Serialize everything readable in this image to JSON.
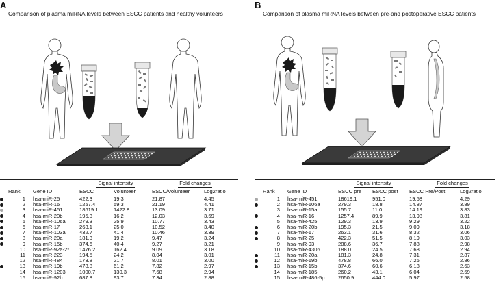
{
  "panel_a": {
    "letter": "A",
    "title": "Comparison of plasma miRNA levels between ESCC patients and healthy volunteers",
    "headers": {
      "rank": "Rank",
      "gene": "Gene ID",
      "group1": "Signal intensity",
      "group2": "Fold changes",
      "c1": "ESCC",
      "c2": "Volunteer",
      "c3": "ESCC/Volunteer",
      "c4": "Log2ratio"
    },
    "rows": [
      {
        "dot": "black",
        "rank": "1",
        "gene": "hsa-miR-25",
        "v1": "422.3",
        "v2": "19.3",
        "v3": "21.87",
        "v4": "4.45"
      },
      {
        "dot": "black",
        "rank": "2",
        "gene": "hsa-miR-16",
        "v1": "1257.4",
        "v2": "59.3",
        "v3": "21.19",
        "v4": "4.41"
      },
      {
        "dot": "grey",
        "rank": "3",
        "gene": "hsa-miR-451",
        "v1": "18619.1",
        "v2": "1422.8",
        "v3": "13.09",
        "v4": "3.71"
      },
      {
        "dot": "black",
        "rank": "4",
        "gene": "hsa-miR-20b",
        "v1": "195.3",
        "v2": "16.2",
        "v3": "12.03",
        "v4": "3.59"
      },
      {
        "dot": "black",
        "rank": "5",
        "gene": "hsa-miR-106a",
        "v1": "279.3",
        "v2": "25.9",
        "v3": "10.77",
        "v4": "3.43"
      },
      {
        "dot": "black",
        "rank": "6",
        "gene": "hsa-miR-17",
        "v1": "263.1",
        "v2": "25.0",
        "v3": "10.52",
        "v4": "3.40"
      },
      {
        "dot": "black",
        "rank": "7",
        "gene": "hsa-miR-103a",
        "v1": "432.7",
        "v2": "41.4",
        "v3": "10.46",
        "v4": "3.39"
      },
      {
        "dot": "black",
        "rank": "8",
        "gene": "hsa-miR-20a",
        "v1": "181.3",
        "v2": "19.2",
        "v3": "9.47",
        "v4": "3.24"
      },
      {
        "dot": "black",
        "rank": "9",
        "gene": "hsa-miR-15b",
        "v1": "374.6",
        "v2": "40.4",
        "v3": "9.27",
        "v4": "3.21"
      },
      {
        "dot": "none",
        "rank": "10",
        "gene": "hsa-miR-92a-2*",
        "v1": "1476.2",
        "v2": "162.4",
        "v3": "9.09",
        "v4": "3.18"
      },
      {
        "dot": "none",
        "rank": "11",
        "gene": "hsa-miR-223",
        "v1": "194.5",
        "v2": "24.2",
        "v3": "8.04",
        "v4": "3.01"
      },
      {
        "dot": "none",
        "rank": "12",
        "gene": "hsa-miR-484",
        "v1": "173.8",
        "v2": "21.7",
        "v3": "8.01",
        "v4": "3.00"
      },
      {
        "dot": "black",
        "rank": "13",
        "gene": "hsa-miR-19b",
        "v1": "478.8",
        "v2": "61.2",
        "v3": "7.82",
        "v4": "2.97"
      },
      {
        "dot": "none",
        "rank": "14",
        "gene": "hsa-miR-1203",
        "v1": "1000.7",
        "v2": "130.3",
        "v3": "7.68",
        "v4": "2.94"
      },
      {
        "dot": "none",
        "rank": "15",
        "gene": "hsa-miR-92b",
        "v1": "687.8",
        "v2": "93.7",
        "v3": "7.34",
        "v4": "2.88"
      }
    ]
  },
  "panel_b": {
    "letter": "B",
    "title": "Comparison of plasma miRNA levels between pre-and postoperative ESCC patients",
    "headers": {
      "rank": "Rank",
      "gene": "Gene ID",
      "group1": "Signal intensity",
      "group2": "Fold changes",
      "c1": "ESCC pre",
      "c2": "ESCC post",
      "c3": "ESCC Pre/Post",
      "c4": "Log2ratio"
    },
    "rows": [
      {
        "dot": "grey",
        "rank": "1",
        "gene": "hsa-miR-451",
        "v1": "18619.1",
        "v2": "951.0",
        "v3": "19.58",
        "v4": "4.29"
      },
      {
        "dot": "black",
        "rank": "2",
        "gene": "hsa-miR-106a",
        "v1": "279.3",
        "v2": "18.8",
        "v3": "14.87",
        "v4": "3.89"
      },
      {
        "dot": "none",
        "rank": "3",
        "gene": "hsa-miR-15a",
        "v1": "155.7",
        "v2": "11.0",
        "v3": "14.19",
        "v4": "3.83"
      },
      {
        "dot": "black",
        "rank": "4",
        "gene": "hsa-miR-16",
        "v1": "1257.4",
        "v2": "89.9",
        "v3": "13.98",
        "v4": "3.81"
      },
      {
        "dot": "none",
        "rank": "5",
        "gene": "hsa-miR-425",
        "v1": "129.3",
        "v2": "13.9",
        "v3": "9.29",
        "v4": "3.22"
      },
      {
        "dot": "black",
        "rank": "6",
        "gene": "hsa-miR-20b",
        "v1": "195.3",
        "v2": "21.5",
        "v3": "9.09",
        "v4": "3.18"
      },
      {
        "dot": "black",
        "rank": "7",
        "gene": "hsa-miR-17",
        "v1": "263.1",
        "v2": "31.6",
        "v3": "8.32",
        "v4": "3.06"
      },
      {
        "dot": "black",
        "rank": "8",
        "gene": "hsa-miR-25",
        "v1": "422.3",
        "v2": "51.5",
        "v3": "8.19",
        "v4": "3.03"
      },
      {
        "dot": "none",
        "rank": "9",
        "gene": "hsa-miR-93",
        "v1": "288.6",
        "v2": "36.7",
        "v3": "7.88",
        "v4": "2.98"
      },
      {
        "dot": "none",
        "rank": "10",
        "gene": "hsa-miR-4306",
        "v1": "188.0",
        "v2": "24.5",
        "v3": "7.68",
        "v4": "2.94"
      },
      {
        "dot": "black",
        "rank": "11",
        "gene": "hsa-miR-20a",
        "v1": "181.3",
        "v2": "24.8",
        "v3": "7.31",
        "v4": "2.87"
      },
      {
        "dot": "black",
        "rank": "12",
        "gene": "hsa-miR-19b",
        "v1": "478.8",
        "v2": "66.0",
        "v3": "7.26",
        "v4": "2.86"
      },
      {
        "dot": "black",
        "rank": "13",
        "gene": "hsa-miR-15b",
        "v1": "374.6",
        "v2": "60.6",
        "v3": "6.18",
        "v4": "2.63"
      },
      {
        "dot": "none",
        "rank": "14",
        "gene": "hsa-miR-185",
        "v1": "260.2",
        "v2": "43.1",
        "v3": "6.04",
        "v4": "2.59"
      },
      {
        "dot": "none",
        "rank": "15",
        "gene": "hsa-miR-486-5p",
        "v1": "2650.9",
        "v2": "444.0",
        "v3": "5.97",
        "v4": "2.58"
      }
    ]
  },
  "colors": {
    "ink": "#1a1a1a",
    "grey_dot": "#a8a8a8",
    "arrow": "#d4d4d4",
    "chip": "#3a3a3a"
  },
  "icons": [
    "human-figure",
    "tumor",
    "stomach",
    "blood-tube",
    "down-arrow",
    "microarray-chip"
  ]
}
